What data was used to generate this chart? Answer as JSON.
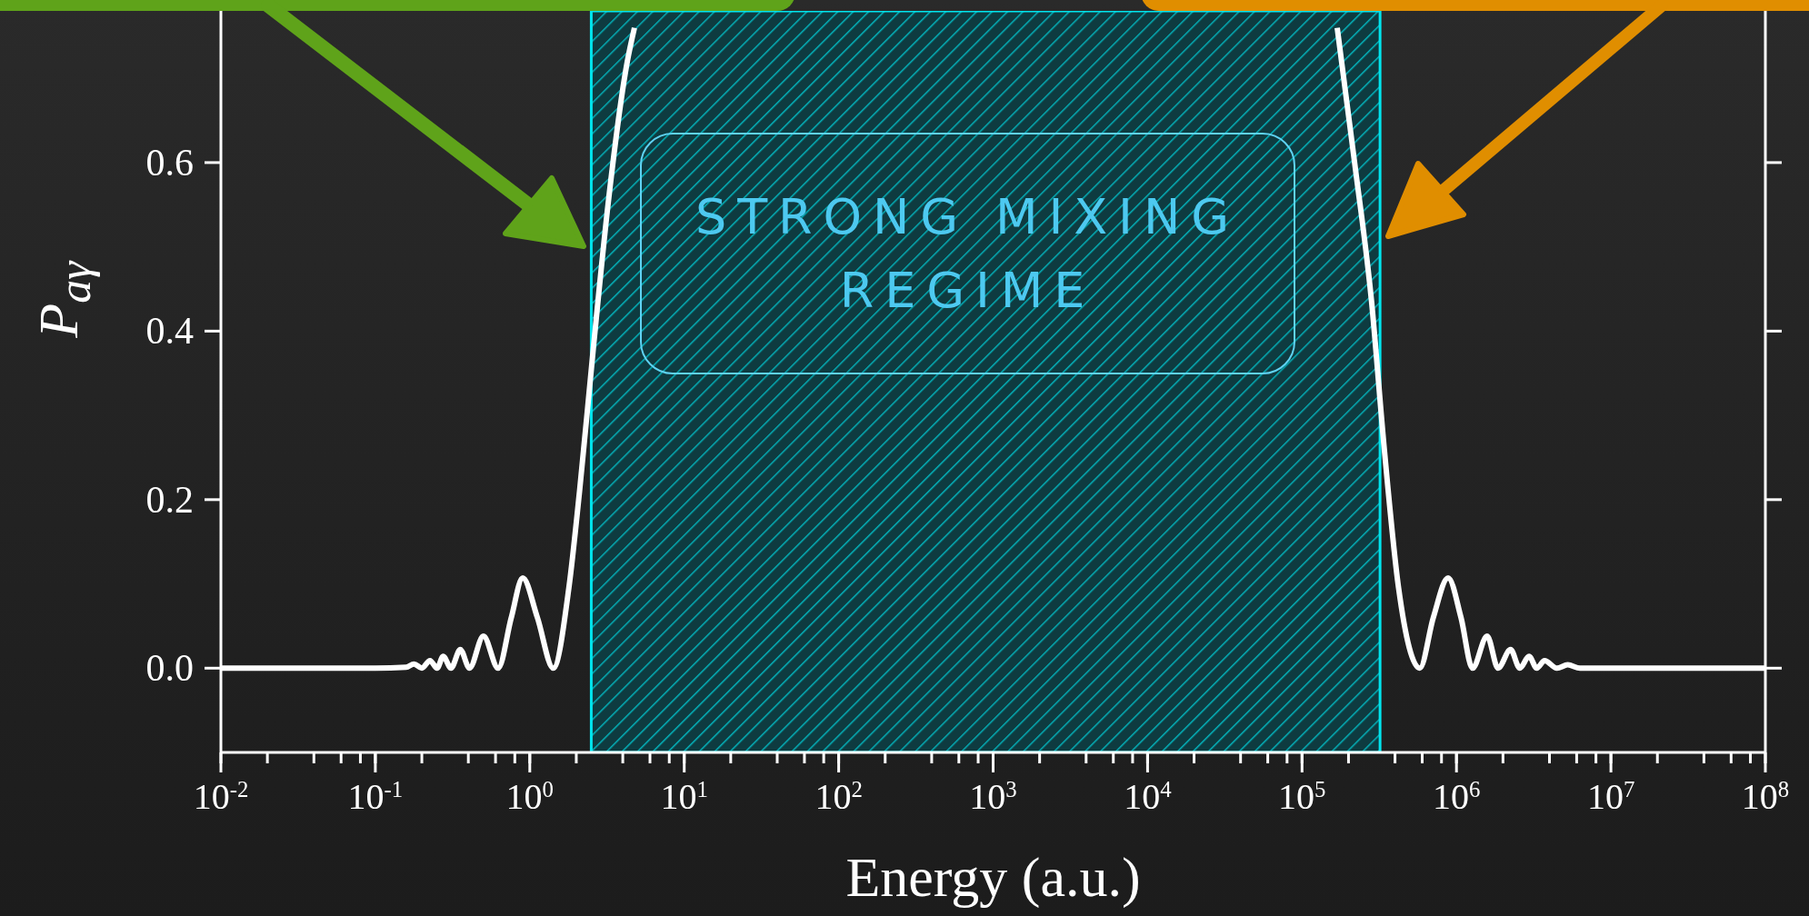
{
  "chart_data": {
    "type": "line",
    "xlabel": "Energy (a.u.)",
    "ylabel": "P$_{aγ}$",
    "log": "x",
    "x": [
      0.01,
      0.1,
      0.158,
      0.178,
      0.2,
      0.226,
      0.251,
      0.275,
      0.309,
      0.355,
      0.407,
      0.501,
      0.624,
      0.759,
      0.9,
      1.12,
      1.42,
      1.79,
      2.1,
      2.58,
      3.21,
      4.28,
      4.76,
      1000,
      169000,
      219000,
      282000,
      339000,
      422000,
      579000,
      708000,
      883000,
      1070000,
      1270000,
      1580000,
      1860000,
      2240000,
      2570000,
      2950000,
      3310000,
      3720000,
      4470000,
      5250000,
      6310000,
      100000000
    ],
    "series": [
      {
        "color": "#ffffff",
        "values": [
          0,
          0,
          0.001,
          0.005,
          0,
          0.009,
          0,
          0.014,
          0,
          0.022,
          0,
          0.038,
          0,
          0.06,
          0.107,
          0.06,
          0,
          0.095,
          0.21,
          0.38,
          0.55,
          0.72,
          0.76,
          null,
          0.76,
          0.6,
          0.435,
          0.265,
          0.095,
          0,
          0.06,
          0.107,
          0.06,
          0,
          0.038,
          0,
          0.022,
          0,
          0.014,
          0,
          0.009,
          0,
          0.004,
          0,
          0
        ]
      }
    ],
    "xlim": [
      0.01,
      100000000
    ],
    "ylim": [
      -0.1,
      0.78
    ],
    "xticks": [
      {
        "value": 0.01,
        "label": "10$^{-2}$"
      },
      {
        "value": 0.02,
        "label": null
      },
      {
        "value": 0.04,
        "label": null
      },
      {
        "value": 0.06,
        "label": null
      },
      {
        "value": 0.08,
        "label": null
      },
      {
        "value": 0.1,
        "label": "10$^{-1}$"
      },
      {
        "value": 0.2,
        "label": null
      },
      {
        "value": 0.4,
        "label": null
      },
      {
        "value": 0.6,
        "label": null
      },
      {
        "value": 0.8,
        "label": null
      },
      {
        "value": 1,
        "label": "10$^{0}$"
      },
      {
        "value": 2,
        "label": null
      },
      {
        "value": 4,
        "label": null
      },
      {
        "value": 6,
        "label": null
      },
      {
        "value": 8,
        "label": null
      },
      {
        "value": 10,
        "label": "10$^{1}$"
      },
      {
        "value": 20,
        "label": null
      },
      {
        "value": 40,
        "label": null
      },
      {
        "value": 60,
        "label": null
      },
      {
        "value": 80,
        "label": null
      },
      {
        "value": 100,
        "label": "10$^{2}$"
      },
      {
        "value": 200,
        "label": null
      },
      {
        "value": 400,
        "label": null
      },
      {
        "value": 600,
        "label": null
      },
      {
        "value": 800,
        "label": null
      },
      {
        "value": 1000,
        "label": "10$^{3}$"
      },
      {
        "value": 2000,
        "label": null
      },
      {
        "value": 4000,
        "label": null
      },
      {
        "value": 6000,
        "label": null
      },
      {
        "value": 8000,
        "label": null
      },
      {
        "value": 10000,
        "label": "10$^{4}$"
      },
      {
        "value": 20000,
        "label": null
      },
      {
        "value": 40000,
        "label": null
      },
      {
        "value": 60000,
        "label": null
      },
      {
        "value": 80000,
        "label": null
      },
      {
        "value": 100000,
        "label": "10$^{5}$"
      },
      {
        "value": 200000,
        "label": null
      },
      {
        "value": 400000,
        "label": null
      },
      {
        "value": 600000,
        "label": null
      },
      {
        "value": 800000,
        "label": null
      },
      {
        "value": 1000000,
        "label": "10$^{6}$"
      },
      {
        "value": 2000000,
        "label": null
      },
      {
        "value": 4000000,
        "label": null
      },
      {
        "value": 6000000,
        "label": null
      },
      {
        "value": 8000000,
        "label": null
      },
      {
        "value": 10000000,
        "label": "10$^{7}$"
      },
      {
        "value": 20000000,
        "label": null
      },
      {
        "value": 40000000,
        "label": null
      },
      {
        "value": 60000000,
        "label": null
      },
      {
        "value": 80000000,
        "label": null
      },
      {
        "value": 100000000,
        "label": "10$^{8}$"
      }
    ],
    "yticks": [
      {
        "value": 0,
        "label": "0.0"
      },
      {
        "value": 0.2,
        "label": "0.2"
      },
      {
        "value": 0.4,
        "label": "0.4"
      },
      {
        "value": 0.6,
        "label": "0.6"
      }
    ],
    "bands": [
      {
        "axis": "x",
        "from": 2.5,
        "to": 320000,
        "label": "STRONG MIXING REGIME",
        "color": "#00e5ee"
      }
    ]
  }
}
